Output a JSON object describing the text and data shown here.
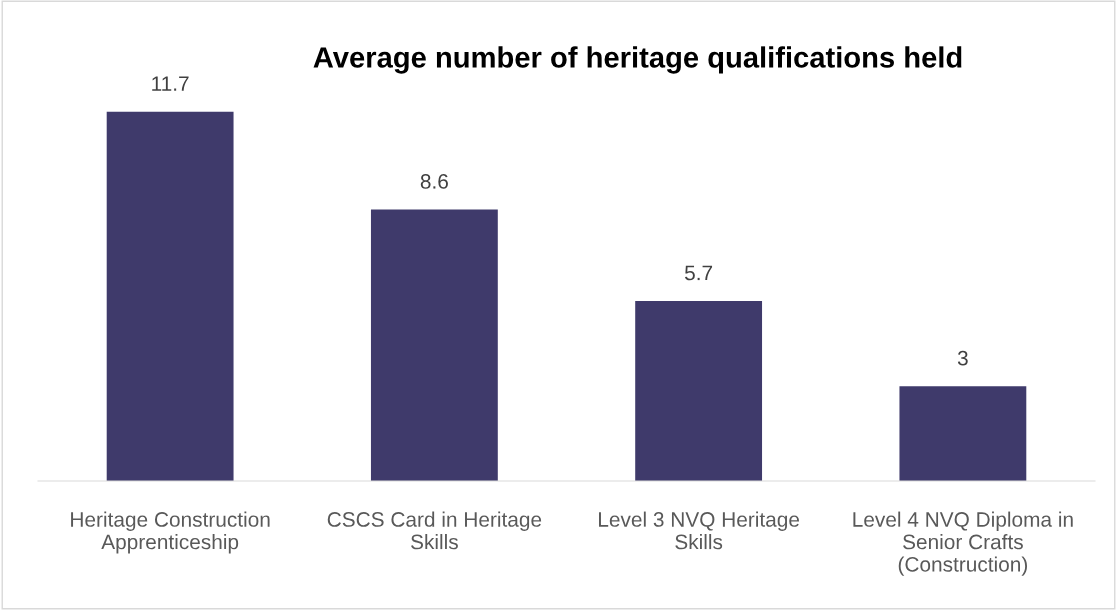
{
  "chart_data": {
    "type": "bar",
    "title": "Average number of heritage qualifications held",
    "categories": [
      "Heritage Construction\nApprenticeship",
      "CSCS Card in Heritage\nSkills",
      "Level 3 NVQ Heritage\nSkills",
      "Level 4 NVQ Diploma in\nSenior Crafts\n(Construction)"
    ],
    "values": [
      11.7,
      8.6,
      5.7,
      3
    ],
    "color": "#3f3a6b",
    "data_labels": true,
    "grid": false,
    "legend": false
  }
}
